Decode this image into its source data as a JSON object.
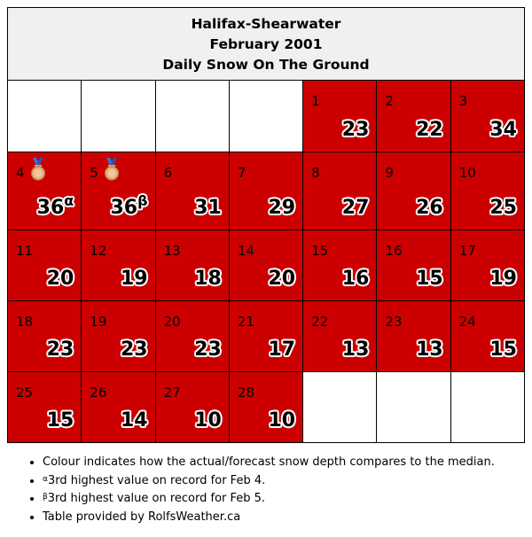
{
  "title": {
    "line1": "Halifax-Shearwater",
    "line2": "February 2001",
    "line3": "Daily Snow On The Ground"
  },
  "colors": {
    "above_median": "#cc0000",
    "empty": "#ffffff",
    "header_bg": "#f0f0f0"
  },
  "weeks": [
    [
      {
        "empty": true
      },
      {
        "empty": true
      },
      {
        "empty": true
      },
      {
        "empty": true
      },
      {
        "day": "1",
        "value": "23"
      },
      {
        "day": "2",
        "value": "22"
      },
      {
        "day": "3",
        "value": "34"
      }
    ],
    [
      {
        "day": "4",
        "value": "36",
        "sup": "α",
        "medal": "bronze-medal-icon"
      },
      {
        "day": "5",
        "value": "36",
        "sup": "β",
        "medal": "bronze-medal-icon"
      },
      {
        "day": "6",
        "value": "31"
      },
      {
        "day": "7",
        "value": "29"
      },
      {
        "day": "8",
        "value": "27"
      },
      {
        "day": "9",
        "value": "26"
      },
      {
        "day": "10",
        "value": "25"
      }
    ],
    [
      {
        "day": "11",
        "value": "20"
      },
      {
        "day": "12",
        "value": "19"
      },
      {
        "day": "13",
        "value": "18"
      },
      {
        "day": "14",
        "value": "20"
      },
      {
        "day": "15",
        "value": "16"
      },
      {
        "day": "16",
        "value": "15"
      },
      {
        "day": "17",
        "value": "19"
      }
    ],
    [
      {
        "day": "18",
        "value": "23"
      },
      {
        "day": "19",
        "value": "23"
      },
      {
        "day": "20",
        "value": "23"
      },
      {
        "day": "21",
        "value": "17"
      },
      {
        "day": "22",
        "value": "13"
      },
      {
        "day": "23",
        "value": "13"
      },
      {
        "day": "24",
        "value": "15"
      }
    ],
    [
      {
        "day": "25",
        "value": "15"
      },
      {
        "day": "26",
        "value": "14"
      },
      {
        "day": "27",
        "value": "10"
      },
      {
        "day": "28",
        "value": "10"
      },
      {
        "empty": true
      },
      {
        "empty": true
      },
      {
        "empty": true
      }
    ]
  ],
  "notes": [
    {
      "text": "Colour indicates how the actual/forecast snow depth compares to the median."
    },
    {
      "sup": "α",
      "text": "3rd highest value on record for Feb 4."
    },
    {
      "sup": "β",
      "text": "3rd highest value on record for Feb 5."
    },
    {
      "text": "Table provided by RolfsWeather.ca"
    }
  ]
}
